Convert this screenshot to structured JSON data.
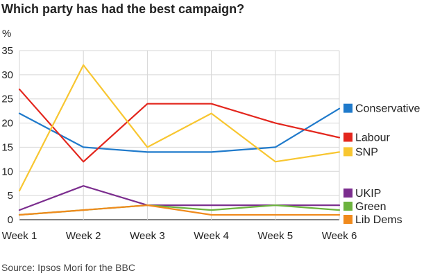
{
  "title": "Which party has had the best campaign?",
  "unit_label": "%",
  "source": "Source: Ipsos Mori for the BBC",
  "chart_data": {
    "type": "line",
    "title": "Which party has had the best campaign?",
    "ylabel": "%",
    "xlabel": "",
    "ylim": [
      0,
      35
    ],
    "yticks": [
      0,
      5,
      10,
      15,
      20,
      25,
      30,
      35
    ],
    "grid": true,
    "legend_placement": "right",
    "categories": [
      "Week 1",
      "Week 2",
      "Week 3",
      "Week 4",
      "Week 5",
      "Week 6"
    ],
    "series": [
      {
        "name": "Conservative",
        "color": "#1f7acb",
        "values": [
          22,
          15,
          14,
          14,
          15,
          23
        ]
      },
      {
        "name": "Labour",
        "color": "#e3261d",
        "values": [
          27,
          12,
          24,
          24,
          20,
          17
        ]
      },
      {
        "name": "SNP",
        "color": "#f8c630",
        "values": [
          6,
          32,
          15,
          22,
          12,
          14
        ]
      },
      {
        "name": "UKIP",
        "color": "#7b2d8e",
        "values": [
          2,
          7,
          3,
          3,
          3,
          3
        ]
      },
      {
        "name": "Green",
        "color": "#6cb33e",
        "values": [
          1,
          2,
          3,
          2,
          3,
          2
        ]
      },
      {
        "name": "Lib Dems",
        "color": "#f08a1c",
        "values": [
          1,
          2,
          3,
          1,
          1,
          1
        ]
      }
    ]
  }
}
